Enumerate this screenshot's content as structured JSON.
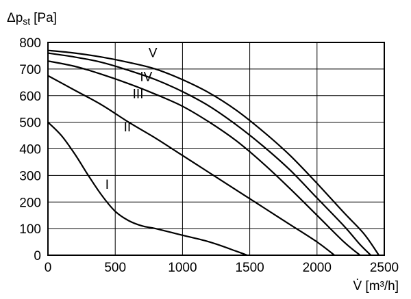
{
  "chart_data": {
    "type": "line",
    "ylabel": "Δp",
    "ylabel_sub": "st",
    "ylabel_unit": "[Pa]",
    "xlabel": "V̇ [m³/h]",
    "xlim": [
      0,
      2500
    ],
    "ylim": [
      0,
      800
    ],
    "x_ticks": [
      0,
      500,
      1000,
      1500,
      2000,
      2500
    ],
    "y_ticks": [
      0,
      100,
      200,
      300,
      400,
      500,
      600,
      700,
      800
    ],
    "grid": true,
    "series": [
      {
        "name": "I",
        "label_pos": [
          440,
          250
        ],
        "points": [
          [
            0,
            500
          ],
          [
            100,
            450
          ],
          [
            200,
            380
          ],
          [
            300,
            300
          ],
          [
            400,
            225
          ],
          [
            500,
            165
          ],
          [
            600,
            130
          ],
          [
            700,
            110
          ],
          [
            800,
            100
          ],
          [
            1000,
            75
          ],
          [
            1200,
            50
          ],
          [
            1400,
            15
          ],
          [
            1480,
            0
          ]
        ]
      },
      {
        "name": "II",
        "label_pos": [
          590,
          465
        ],
        "points": [
          [
            0,
            675
          ],
          [
            200,
            620
          ],
          [
            400,
            565
          ],
          [
            600,
            500
          ],
          [
            800,
            440
          ],
          [
            1000,
            375
          ],
          [
            1200,
            310
          ],
          [
            1400,
            245
          ],
          [
            1600,
            180
          ],
          [
            1800,
            115
          ],
          [
            2000,
            50
          ],
          [
            2130,
            0
          ]
        ]
      },
      {
        "name": "III",
        "label_pos": [
          670,
          590
        ],
        "points": [
          [
            0,
            730
          ],
          [
            200,
            710
          ],
          [
            400,
            680
          ],
          [
            600,
            645
          ],
          [
            800,
            605
          ],
          [
            1000,
            560
          ],
          [
            1200,
            500
          ],
          [
            1400,
            430
          ],
          [
            1600,
            345
          ],
          [
            1800,
            250
          ],
          [
            2000,
            150
          ],
          [
            2200,
            50
          ],
          [
            2320,
            0
          ]
        ]
      },
      {
        "name": "IV",
        "label_pos": [
          730,
          655
        ],
        "points": [
          [
            0,
            760
          ],
          [
            200,
            745
          ],
          [
            400,
            725
          ],
          [
            600,
            695
          ],
          [
            800,
            660
          ],
          [
            1000,
            615
          ],
          [
            1200,
            560
          ],
          [
            1400,
            490
          ],
          [
            1600,
            410
          ],
          [
            1800,
            320
          ],
          [
            2000,
            215
          ],
          [
            2200,
            110
          ],
          [
            2320,
            40
          ],
          [
            2400,
            0
          ]
        ]
      },
      {
        "name": "V",
        "label_pos": [
          780,
          745
        ],
        "points": [
          [
            0,
            770
          ],
          [
            200,
            760
          ],
          [
            400,
            745
          ],
          [
            600,
            725
          ],
          [
            800,
            700
          ],
          [
            1000,
            660
          ],
          [
            1200,
            610
          ],
          [
            1400,
            545
          ],
          [
            1600,
            465
          ],
          [
            1800,
            375
          ],
          [
            2000,
            270
          ],
          [
            2200,
            160
          ],
          [
            2350,
            80
          ],
          [
            2460,
            0
          ]
        ]
      }
    ]
  }
}
